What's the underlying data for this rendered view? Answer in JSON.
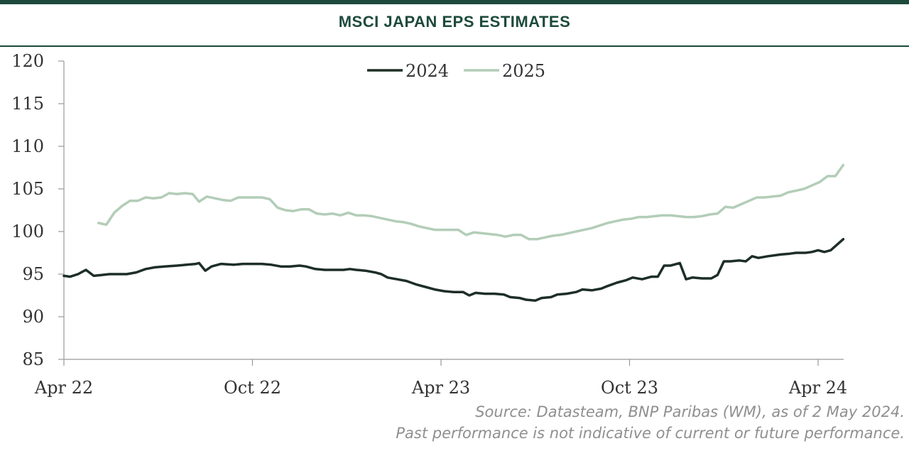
{
  "title": "MSCI JAPAN EPS ESTIMATES",
  "source_line1": "Source: Datasteam, BNP Paribas (WM), as of 2 May 2024.",
  "source_line2": "Past performance is not indicative of current or future performance.",
  "colors": {
    "brand": "#1d4a3c",
    "series_2024": "#1d2e27",
    "series_2025": "#b3cdb8",
    "axis": "#999999"
  },
  "chart_data": {
    "type": "line",
    "title": "MSCI JAPAN EPS ESTIMATES",
    "xlabel": "",
    "ylabel": "",
    "x_tick_labels": [
      "Apr 22",
      "Oct 22",
      "Apr 23",
      "Oct 23",
      "Apr 24"
    ],
    "x_unit": "months since Apr 22",
    "x_range": [
      0,
      24.8
    ],
    "ylim": [
      85,
      120
    ],
    "y_ticks": [
      85,
      90,
      95,
      100,
      105,
      110,
      115,
      120
    ],
    "grid": false,
    "legend_position": "top-center",
    "series": [
      {
        "name": "2024",
        "points": [
          [
            0,
            94.8
          ],
          [
            0.2,
            94.7
          ],
          [
            0.45,
            95.0
          ],
          [
            0.7,
            95.5
          ],
          [
            0.95,
            94.8
          ],
          [
            1.2,
            94.9
          ],
          [
            1.45,
            95.0
          ],
          [
            1.7,
            95.0
          ],
          [
            2.0,
            95.0
          ],
          [
            2.3,
            95.2
          ],
          [
            2.6,
            95.6
          ],
          [
            2.9,
            95.8
          ],
          [
            3.2,
            95.9
          ],
          [
            3.6,
            96.0
          ],
          [
            3.9,
            96.1
          ],
          [
            4.2,
            96.2
          ],
          [
            4.3,
            96.3
          ],
          [
            4.5,
            95.4
          ],
          [
            4.7,
            95.9
          ],
          [
            5.0,
            96.2
          ],
          [
            5.4,
            96.1
          ],
          [
            5.7,
            96.2
          ],
          [
            6.0,
            96.2
          ],
          [
            6.3,
            96.2
          ],
          [
            6.6,
            96.1
          ],
          [
            6.9,
            95.9
          ],
          [
            7.2,
            95.9
          ],
          [
            7.5,
            96.0
          ],
          [
            7.7,
            95.9
          ],
          [
            8.0,
            95.6
          ],
          [
            8.3,
            95.5
          ],
          [
            8.6,
            95.5
          ],
          [
            8.9,
            95.5
          ],
          [
            9.1,
            95.6
          ],
          [
            9.3,
            95.5
          ],
          [
            9.6,
            95.4
          ],
          [
            9.9,
            95.2
          ],
          [
            10.1,
            95.0
          ],
          [
            10.3,
            94.6
          ],
          [
            10.6,
            94.4
          ],
          [
            10.9,
            94.2
          ],
          [
            11.2,
            93.8
          ],
          [
            11.5,
            93.5
          ],
          [
            11.8,
            93.2
          ],
          [
            12.1,
            93.0
          ],
          [
            12.4,
            92.9
          ],
          [
            12.7,
            92.9
          ],
          [
            12.9,
            92.5
          ],
          [
            13.1,
            92.8
          ],
          [
            13.4,
            92.7
          ],
          [
            13.7,
            92.7
          ],
          [
            14.0,
            92.6
          ],
          [
            14.2,
            92.3
          ],
          [
            14.5,
            92.2
          ],
          [
            14.7,
            92.0
          ],
          [
            15.0,
            91.9
          ],
          [
            15.2,
            92.2
          ],
          [
            15.5,
            92.3
          ],
          [
            15.7,
            92.6
          ],
          [
            16.0,
            92.7
          ],
          [
            16.3,
            92.9
          ],
          [
            16.5,
            93.2
          ],
          [
            16.8,
            93.1
          ],
          [
            17.1,
            93.3
          ],
          [
            17.3,
            93.6
          ],
          [
            17.6,
            94.0
          ],
          [
            17.9,
            94.3
          ],
          [
            18.1,
            94.6
          ],
          [
            18.4,
            94.4
          ],
          [
            18.7,
            94.7
          ],
          [
            18.9,
            94.7
          ],
          [
            19.1,
            96.0
          ],
          [
            19.3,
            96.0
          ],
          [
            19.6,
            96.3
          ],
          [
            19.8,
            94.4
          ],
          [
            20.0,
            94.6
          ],
          [
            20.3,
            94.5
          ],
          [
            20.6,
            94.5
          ],
          [
            20.8,
            94.9
          ],
          [
            21.0,
            96.5
          ],
          [
            21.2,
            96.5
          ],
          [
            21.5,
            96.6
          ],
          [
            21.7,
            96.5
          ],
          [
            21.9,
            97.1
          ],
          [
            22.1,
            96.9
          ],
          [
            22.4,
            97.1
          ],
          [
            22.6,
            97.2
          ],
          [
            22.8,
            97.3
          ],
          [
            23.1,
            97.4
          ],
          [
            23.3,
            97.5
          ],
          [
            23.6,
            97.5
          ],
          [
            23.8,
            97.6
          ],
          [
            24.0,
            97.8
          ],
          [
            24.2,
            97.6
          ],
          [
            24.4,
            97.8
          ],
          [
            24.8,
            99.1
          ]
        ]
      },
      {
        "name": "2025",
        "points": [
          [
            1.1,
            101.0
          ],
          [
            1.35,
            100.8
          ],
          [
            1.6,
            102.2
          ],
          [
            1.85,
            103.0
          ],
          [
            2.1,
            103.6
          ],
          [
            2.35,
            103.6
          ],
          [
            2.6,
            104.0
          ],
          [
            2.85,
            103.9
          ],
          [
            3.1,
            104.0
          ],
          [
            3.35,
            104.5
          ],
          [
            3.6,
            104.4
          ],
          [
            3.85,
            104.5
          ],
          [
            4.1,
            104.4
          ],
          [
            4.3,
            103.5
          ],
          [
            4.55,
            104.1
          ],
          [
            4.8,
            103.9
          ],
          [
            5.05,
            103.7
          ],
          [
            5.3,
            103.6
          ],
          [
            5.55,
            104.0
          ],
          [
            5.8,
            104.0
          ],
          [
            6.05,
            104.0
          ],
          [
            6.3,
            104.0
          ],
          [
            6.55,
            103.8
          ],
          [
            6.8,
            102.8
          ],
          [
            7.05,
            102.5
          ],
          [
            7.3,
            102.4
          ],
          [
            7.55,
            102.6
          ],
          [
            7.8,
            102.6
          ],
          [
            8.05,
            102.1
          ],
          [
            8.3,
            102.0
          ],
          [
            8.55,
            102.1
          ],
          [
            8.8,
            101.9
          ],
          [
            9.05,
            102.2
          ],
          [
            9.3,
            101.9
          ],
          [
            9.55,
            101.9
          ],
          [
            9.8,
            101.8
          ],
          [
            10.05,
            101.6
          ],
          [
            10.3,
            101.4
          ],
          [
            10.55,
            101.2
          ],
          [
            10.8,
            101.1
          ],
          [
            11.05,
            100.9
          ],
          [
            11.3,
            100.6
          ],
          [
            11.55,
            100.4
          ],
          [
            11.8,
            100.2
          ],
          [
            12.05,
            100.2
          ],
          [
            12.3,
            100.2
          ],
          [
            12.55,
            100.2
          ],
          [
            12.8,
            99.6
          ],
          [
            13.05,
            99.9
          ],
          [
            13.3,
            99.8
          ],
          [
            13.55,
            99.7
          ],
          [
            13.8,
            99.6
          ],
          [
            14.05,
            99.4
          ],
          [
            14.3,
            99.6
          ],
          [
            14.55,
            99.6
          ],
          [
            14.8,
            99.1
          ],
          [
            15.05,
            99.1
          ],
          [
            15.3,
            99.3
          ],
          [
            15.55,
            99.5
          ],
          [
            15.8,
            99.6
          ],
          [
            16.05,
            99.8
          ],
          [
            16.3,
            100.0
          ],
          [
            16.55,
            100.2
          ],
          [
            16.8,
            100.4
          ],
          [
            17.05,
            100.7
          ],
          [
            17.3,
            101.0
          ],
          [
            17.55,
            101.2
          ],
          [
            17.8,
            101.4
          ],
          [
            18.05,
            101.5
          ],
          [
            18.3,
            101.7
          ],
          [
            18.55,
            101.7
          ],
          [
            18.8,
            101.8
          ],
          [
            19.05,
            101.9
          ],
          [
            19.3,
            101.9
          ],
          [
            19.55,
            101.8
          ],
          [
            19.8,
            101.7
          ],
          [
            20.05,
            101.7
          ],
          [
            20.3,
            101.8
          ],
          [
            20.55,
            102.0
          ],
          [
            20.8,
            102.1
          ],
          [
            21.05,
            102.9
          ],
          [
            21.3,
            102.8
          ],
          [
            21.55,
            103.2
          ],
          [
            21.8,
            103.6
          ],
          [
            22.05,
            104.0
          ],
          [
            22.3,
            104.0
          ],
          [
            22.55,
            104.1
          ],
          [
            22.8,
            104.2
          ],
          [
            23.05,
            104.6
          ],
          [
            23.3,
            104.8
          ],
          [
            23.55,
            105.0
          ],
          [
            23.8,
            105.4
          ],
          [
            24.05,
            105.8
          ],
          [
            24.3,
            106.5
          ],
          [
            24.55,
            106.5
          ],
          [
            24.8,
            107.8
          ]
        ]
      }
    ]
  }
}
